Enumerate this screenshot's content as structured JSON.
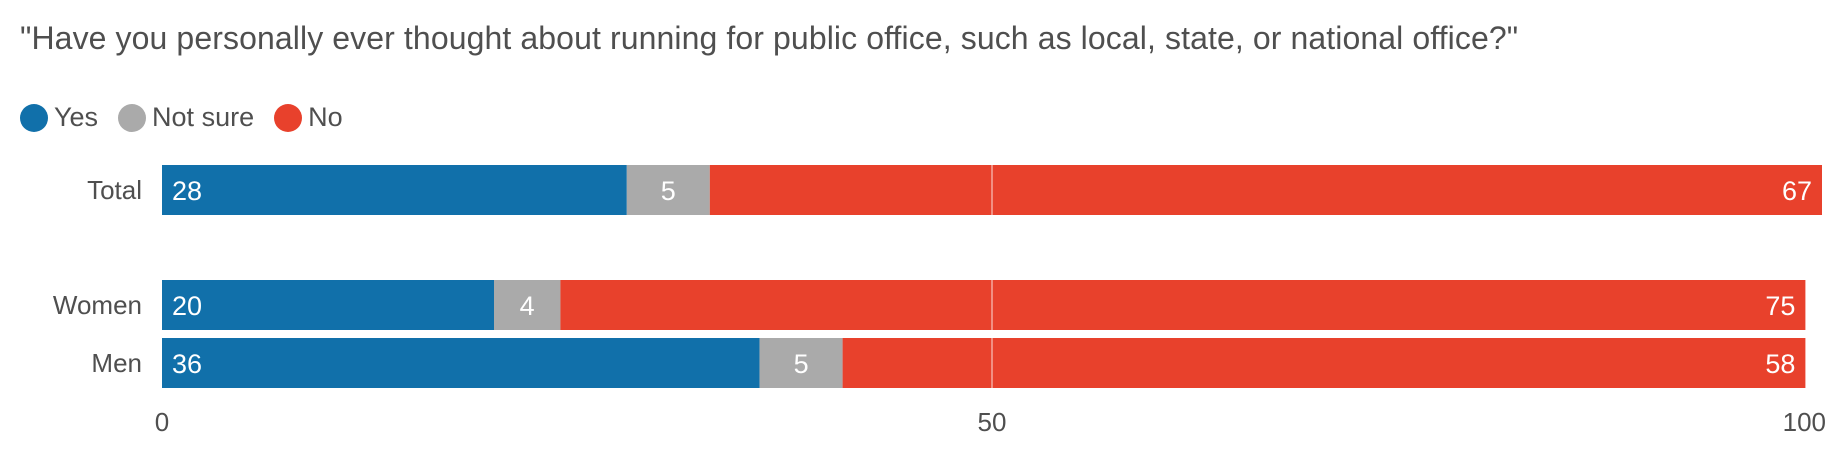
{
  "chart_data": {
    "type": "bar",
    "orientation": "horizontal",
    "stacked": true,
    "title": "\"Have you personally ever thought about running for public office, such as local, state, or national office?\"",
    "categories": [
      "Total",
      "Women",
      "Men"
    ],
    "series": [
      {
        "name": "Yes",
        "color": "#1170aa",
        "values": [
          28,
          20,
          36
        ]
      },
      {
        "name": "Not sure",
        "color": "#aaaaaa",
        "values": [
          5,
          4,
          5
        ]
      },
      {
        "name": "No",
        "color": "#e8412c",
        "values": [
          67,
          75,
          58
        ]
      }
    ],
    "xlim": [
      0,
      100
    ],
    "xticks": [
      "0",
      "50",
      "100"
    ],
    "legend_position": "top-left",
    "reference_line": 50
  }
}
